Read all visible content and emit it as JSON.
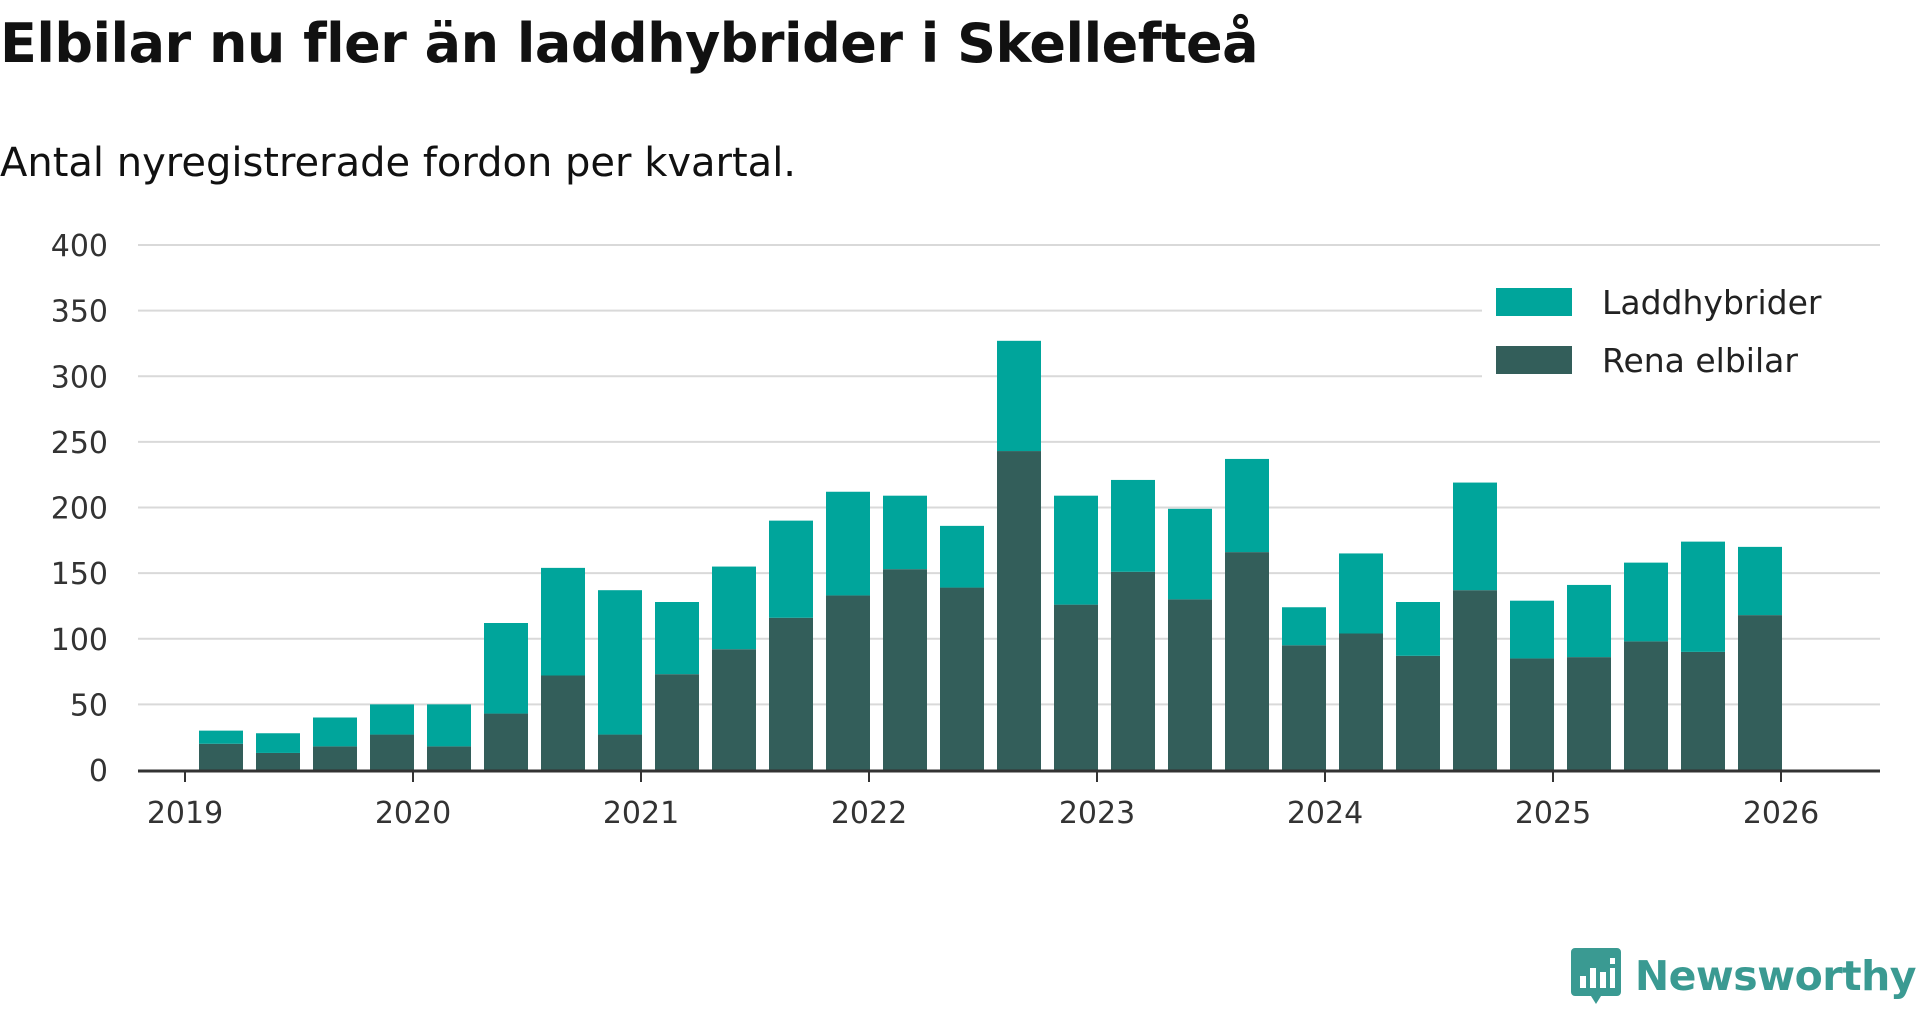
{
  "title": "Elbilar nu fler än laddhybrider i Skellefteå",
  "subtitle": "Antal nyregistrerade fordon per kvartal.",
  "brand": {
    "name": "Newsworthy",
    "icon": "newsworthy-logo-icon",
    "color": "#3a9a92"
  },
  "colors": {
    "laddhybrider": "#00a59b",
    "rena_elbilar": "#335e5a",
    "grid": "#d9d9d9",
    "axis": "#333333"
  },
  "chart_data": {
    "type": "bar",
    "stacked": true,
    "title": "Elbilar nu fler än laddhybrider i Skellefteå",
    "subtitle": "Antal nyregistrerade fordon per kvartal.",
    "xlabel": "",
    "ylabel": "",
    "ylim": [
      0,
      400
    ],
    "yticks": [
      "0",
      "50",
      "100",
      "150",
      "200",
      "250",
      "300",
      "350",
      "400"
    ],
    "xticks": [
      "2019",
      "2020",
      "2021",
      "2022",
      "2023",
      "2024",
      "2025",
      "2026"
    ],
    "categories": [
      "2019 Q2",
      "2019 Q3",
      "2019 Q4",
      "2020 Q1",
      "2020 Q2",
      "2020 Q3",
      "2020 Q4",
      "2021 Q1",
      "2021 Q2",
      "2021 Q3",
      "2021 Q4",
      "2022 Q1",
      "2022 Q2",
      "2022 Q3",
      "2022 Q4",
      "2023 Q1",
      "2023 Q2",
      "2023 Q3",
      "2023 Q4",
      "2024 Q1",
      "2024 Q2",
      "2024 Q3",
      "2024 Q4",
      "2025 Q1",
      "2025 Q2",
      "2025 Q3",
      "2025 Q4",
      "2026 Q1"
    ],
    "series": [
      {
        "name": "Rena elbilar",
        "values": [
          20,
          13,
          18,
          27,
          18,
          43,
          72,
          27,
          73,
          92,
          116,
          133,
          153,
          139,
          243,
          126,
          151,
          130,
          166,
          95,
          104,
          87,
          137,
          85,
          86,
          98,
          90,
          118
        ]
      },
      {
        "name": "Laddhybrider",
        "values": [
          10,
          15,
          22,
          23,
          32,
          69,
          82,
          110,
          55,
          63,
          74,
          79,
          56,
          47,
          84,
          83,
          70,
          69,
          71,
          29,
          61,
          41,
          82,
          44,
          55,
          60,
          84,
          52
        ]
      }
    ],
    "legend": [
      "Laddhybrider",
      "Rena elbilar"
    ],
    "legend_position": "top-right",
    "grid": true
  }
}
